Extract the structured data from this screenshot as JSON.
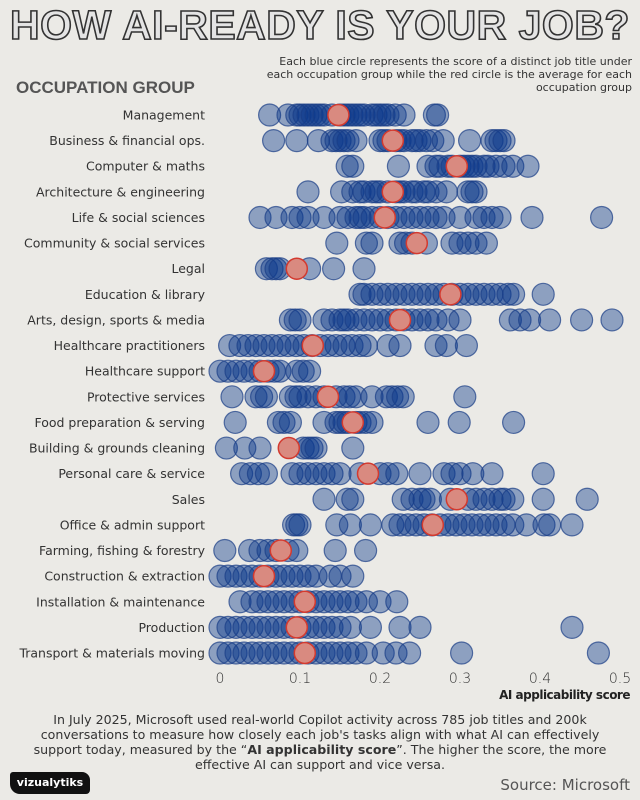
{
  "title": "HOW AI-READY IS YOUR JOB?",
  "note": "Each blue circle represents the score of a distinct job title under each occupation group while the red circle is the average for each occupation group",
  "group_heading": "OCCUPATION GROUP",
  "footer": {
    "text_before": "In July 2025, Microsoft used real-world Copilot activity across 785 job titles and 200k conversations  to measure how closely each job's tasks align with what AI can effectively support today, measured by the “",
    "text_bold": "AI applicability score",
    "text_after": "”. The higher the score, the more effective AI can support and vice versa."
  },
  "logo": "vizualytiks",
  "source": "Source: Microsoft",
  "colors": {
    "job_circle": "#0b3a8c",
    "average_circle": "#d98a80",
    "average_stroke": "#d33a2f"
  },
  "chart_data": {
    "type": "scatter",
    "title": "HOW AI-READY IS YOUR JOB?",
    "xlabel": "AI applicability score",
    "ylabel": "OCCUPATION GROUP",
    "xlim": [
      0,
      0.5
    ],
    "xticks": [
      "0",
      "0.1",
      "0.2",
      "0.3",
      "0.4",
      "0.5"
    ],
    "xtick_values": [
      0,
      0.1,
      0.2,
      0.3,
      0.4,
      0.5
    ],
    "grid": false,
    "groups": [
      {
        "name": "Management",
        "average": 0.148,
        "points": [
          0.062,
          0.085,
          0.096,
          0.1,
          0.105,
          0.11,
          0.115,
          0.12,
          0.125,
          0.13,
          0.14,
          0.15,
          0.155,
          0.16,
          0.165,
          0.17,
          0.175,
          0.18,
          0.19,
          0.195,
          0.2,
          0.205,
          0.21,
          0.219,
          0.23,
          0.268,
          0.272
        ]
      },
      {
        "name": "Business & financial ops.",
        "average": 0.216,
        "points": [
          0.067,
          0.096,
          0.123,
          0.14,
          0.145,
          0.15,
          0.155,
          0.16,
          0.17,
          0.2,
          0.205,
          0.21,
          0.22,
          0.225,
          0.23,
          0.24,
          0.245,
          0.25,
          0.258,
          0.266,
          0.279,
          0.312,
          0.34,
          0.345,
          0.35,
          0.355
        ]
      },
      {
        "name": "Computer & maths",
        "average": 0.296,
        "points": [
          0.159,
          0.166,
          0.223,
          0.26,
          0.27,
          0.275,
          0.285,
          0.29,
          0.3,
          0.305,
          0.31,
          0.315,
          0.32,
          0.33,
          0.335,
          0.345,
          0.355,
          0.366,
          0.385
        ]
      },
      {
        "name": "Architecture & engineering",
        "average": 0.216,
        "points": [
          0.11,
          0.152,
          0.166,
          0.175,
          0.18,
          0.19,
          0.195,
          0.2,
          0.21,
          0.22,
          0.225,
          0.23,
          0.24,
          0.245,
          0.255,
          0.26,
          0.27,
          0.283,
          0.31,
          0.315,
          0.32
        ]
      },
      {
        "name": "Life & social sciences",
        "average": 0.206,
        "points": [
          0.05,
          0.07,
          0.09,
          0.1,
          0.11,
          0.13,
          0.15,
          0.16,
          0.17,
          0.175,
          0.18,
          0.19,
          0.2,
          0.21,
          0.22,
          0.23,
          0.24,
          0.25,
          0.26,
          0.27,
          0.28,
          0.3,
          0.32,
          0.33,
          0.34,
          0.35,
          0.39,
          0.477
        ]
      },
      {
        "name": "Community & social services",
        "average": 0.246,
        "points": [
          0.146,
          0.183,
          0.19,
          0.225,
          0.232,
          0.24,
          0.258,
          0.29,
          0.3,
          0.31,
          0.32,
          0.333
        ]
      },
      {
        "name": "Legal",
        "average": 0.096,
        "points": [
          0.058,
          0.065,
          0.07,
          0.075,
          0.112,
          0.142,
          0.18
        ]
      },
      {
        "name": "Education & library",
        "average": 0.288,
        "points": [
          0.175,
          0.18,
          0.19,
          0.2,
          0.21,
          0.22,
          0.23,
          0.24,
          0.25,
          0.26,
          0.27,
          0.28,
          0.29,
          0.3,
          0.31,
          0.32,
          0.33,
          0.34,
          0.35,
          0.36,
          0.367,
          0.404
        ]
      },
      {
        "name": "Arts, design, sports & media",
        "average": 0.225,
        "points": [
          0.088,
          0.094,
          0.1,
          0.13,
          0.14,
          0.15,
          0.155,
          0.16,
          0.17,
          0.18,
          0.19,
          0.2,
          0.21,
          0.22,
          0.23,
          0.24,
          0.25,
          0.26,
          0.27,
          0.285,
          0.3,
          0.363,
          0.375,
          0.387,
          0.412,
          0.452,
          0.49
        ]
      },
      {
        "name": "Healthcare practitioners",
        "average": 0.116,
        "points": [
          0.012,
          0.025,
          0.035,
          0.045,
          0.055,
          0.065,
          0.075,
          0.085,
          0.095,
          0.105,
          0.115,
          0.125,
          0.135,
          0.145,
          0.155,
          0.165,
          0.175,
          0.183,
          0.21,
          0.225,
          0.27,
          0.283,
          0.308
        ]
      },
      {
        "name": "Healthcare support",
        "average": 0.055,
        "points": [
          0.0,
          0.01,
          0.02,
          0.03,
          0.04,
          0.05,
          0.06,
          0.068,
          0.075,
          0.096,
          0.104,
          0.112
        ]
      },
      {
        "name": "Protective services",
        "average": 0.135,
        "points": [
          0.015,
          0.045,
          0.052,
          0.058,
          0.088,
          0.095,
          0.1,
          0.11,
          0.12,
          0.13,
          0.145,
          0.155,
          0.162,
          0.17,
          0.19,
          0.208,
          0.215,
          0.222,
          0.229,
          0.306
        ]
      },
      {
        "name": "Food preparation & serving",
        "average": 0.166,
        "points": [
          0.019,
          0.073,
          0.08,
          0.088,
          0.13,
          0.145,
          0.15,
          0.155,
          0.16,
          0.17,
          0.175,
          0.182,
          0.19,
          0.26,
          0.299,
          0.367
        ]
      },
      {
        "name": "Building & grounds cleaning",
        "average": 0.086,
        "points": [
          0.008,
          0.031,
          0.05,
          0.104,
          0.11,
          0.115,
          0.12,
          0.166
        ]
      },
      {
        "name": "Personal care & service",
        "average": 0.185,
        "points": [
          0.027,
          0.038,
          0.048,
          0.058,
          0.09,
          0.1,
          0.11,
          0.12,
          0.13,
          0.14,
          0.15,
          0.175,
          0.2,
          0.21,
          0.221,
          0.25,
          0.28,
          0.29,
          0.3,
          0.316,
          0.34,
          0.404
        ]
      },
      {
        "name": "Sales",
        "average": 0.296,
        "points": [
          0.13,
          0.159,
          0.166,
          0.229,
          0.24,
          0.25,
          0.255,
          0.263,
          0.288,
          0.31,
          0.32,
          0.33,
          0.34,
          0.35,
          0.355,
          0.366,
          0.404,
          0.459
        ]
      },
      {
        "name": "Office & admin support",
        "average": 0.266,
        "points": [
          0.092,
          0.096,
          0.1,
          0.146,
          0.163,
          0.188,
          0.216,
          0.225,
          0.235,
          0.245,
          0.255,
          0.265,
          0.275,
          0.285,
          0.295,
          0.305,
          0.315,
          0.325,
          0.335,
          0.345,
          0.355,
          0.366,
          0.383,
          0.405,
          0.412,
          0.44
        ]
      },
      {
        "name": "Farming, fishing & forestry",
        "average": 0.076,
        "points": [
          0.006,
          0.037,
          0.05,
          0.06,
          0.07,
          0.085,
          0.096,
          0.144,
          0.182
        ]
      },
      {
        "name": "Construction & extraction",
        "average": 0.055,
        "points": [
          0.0,
          0.01,
          0.02,
          0.03,
          0.04,
          0.05,
          0.06,
          0.07,
          0.08,
          0.09,
          0.1,
          0.11,
          0.12,
          0.138,
          0.15,
          0.166
        ]
      },
      {
        "name": "Installation & maintenance",
        "average": 0.106,
        "points": [
          0.025,
          0.04,
          0.05,
          0.06,
          0.07,
          0.08,
          0.09,
          0.1,
          0.11,
          0.12,
          0.13,
          0.14,
          0.15,
          0.16,
          0.17,
          0.183,
          0.2,
          0.221
        ]
      },
      {
        "name": "Production",
        "average": 0.096,
        "points": [
          0.0,
          0.01,
          0.02,
          0.03,
          0.04,
          0.05,
          0.06,
          0.07,
          0.08,
          0.09,
          0.1,
          0.11,
          0.12,
          0.13,
          0.14,
          0.15,
          0.163,
          0.188,
          0.225,
          0.25,
          0.44
        ]
      },
      {
        "name": "Transport & materials moving",
        "average": 0.106,
        "points": [
          0.0,
          0.01,
          0.02,
          0.03,
          0.04,
          0.05,
          0.06,
          0.07,
          0.08,
          0.09,
          0.1,
          0.11,
          0.12,
          0.13,
          0.14,
          0.15,
          0.16,
          0.17,
          0.183,
          0.204,
          0.22,
          0.237,
          0.302,
          0.473
        ]
      }
    ]
  }
}
